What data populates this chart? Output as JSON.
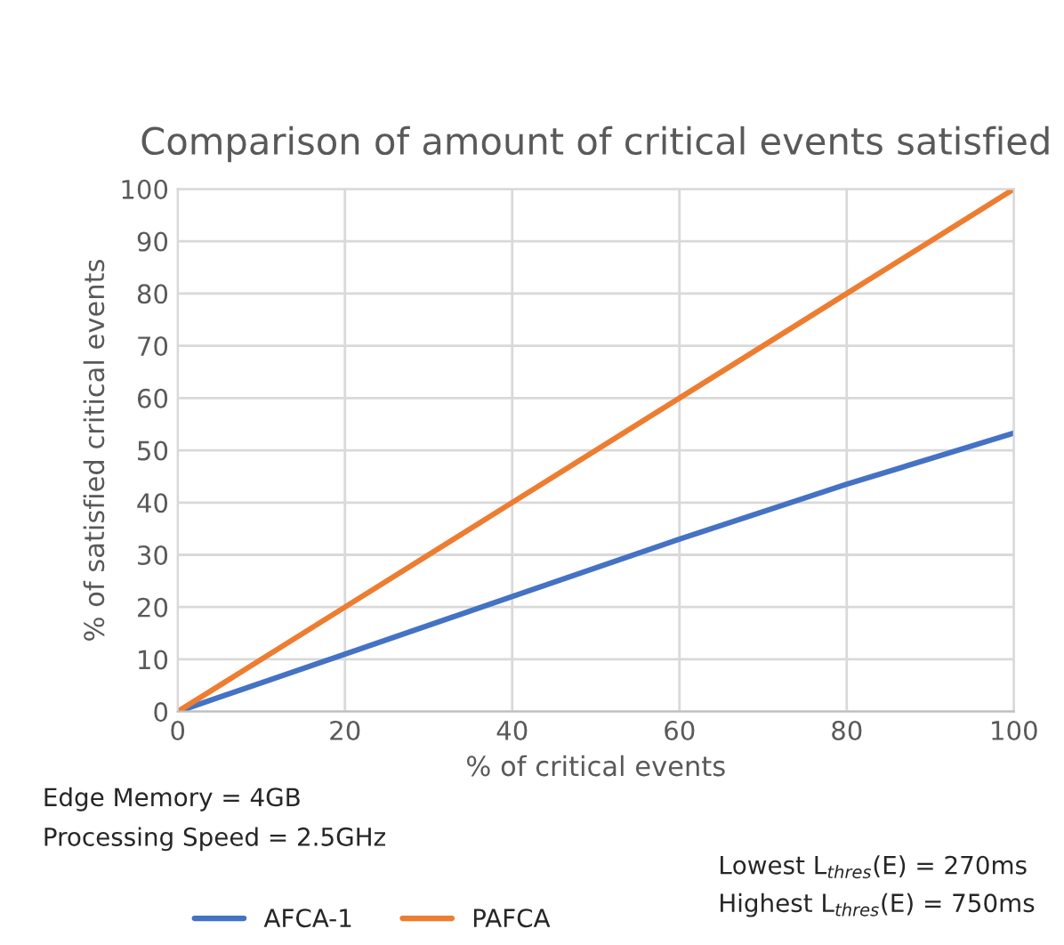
{
  "chart_data": {
    "type": "line",
    "title": "Comparison of amount of critical events satisfied",
    "xlabel": "% of critical events",
    "ylabel": "% of satisfied critical events",
    "x": [
      0,
      20,
      40,
      60,
      80,
      100
    ],
    "series": [
      {
        "name": "AFCA-1",
        "color": "#4472c4",
        "values": [
          0,
          11,
          22,
          33,
          43.5,
          53.3
        ]
      },
      {
        "name": "PAFCA",
        "color": "#ed7d31",
        "values": [
          0,
          20,
          40,
          60,
          80,
          100
        ]
      }
    ],
    "xlim": [
      0,
      100
    ],
    "xticks": [
      0,
      20,
      40,
      60,
      80,
      100
    ],
    "ylim": [
      0,
      100
    ],
    "yticks": [
      0,
      10,
      20,
      30,
      40,
      50,
      60,
      70,
      80,
      90,
      100
    ],
    "grid": true,
    "legend": "bottom",
    "marker": "none",
    "line_style": "solid",
    "annotations": [
      "Edge Memory = 4GB",
      "Processing Speed = 2.5GHz",
      "Lowest L$_{thres}$(E) = 270ms",
      "Highest L$_{thres}$(E) = 750ms"
    ]
  }
}
